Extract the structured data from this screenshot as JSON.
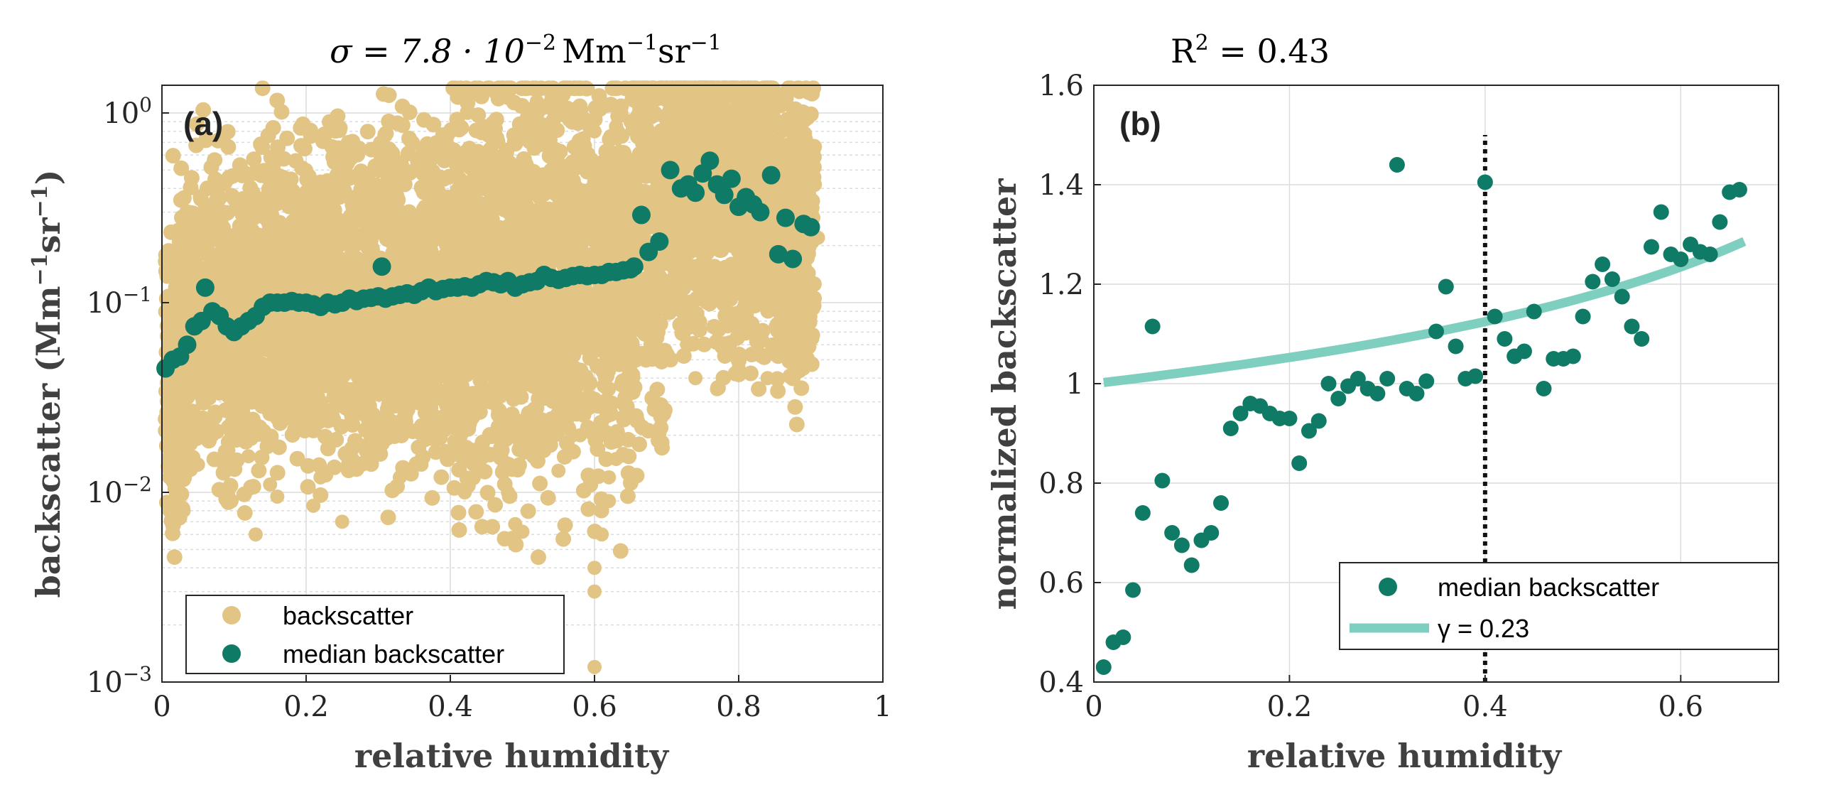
{
  "chart_data": [
    {
      "type": "scatter",
      "panel_label": "(a)",
      "title": {
        "main": "σ = 7.8 · 10",
        "exp": "−2",
        "unit_a": "Mm",
        "unit_a_exp": "−1",
        "unit_b": "sr",
        "unit_b_exp": "−1"
      },
      "xlabel": "relative humidity",
      "ylabel": {
        "main": "backscatter (Mm",
        "exp1": "−1",
        "mid": "sr",
        "exp2": "−1",
        "end": ")"
      },
      "xlim": [
        0,
        1
      ],
      "ylim": [
        0.001,
        1.4
      ],
      "yscale": "log",
      "grid": true,
      "xticks": [
        0,
        0.2,
        0.4,
        0.6,
        0.8,
        1
      ],
      "xtick_labels": [
        "0",
        "0.2",
        "0.4",
        "0.6",
        "0.8",
        "1"
      ],
      "yticks": [
        {
          "base": "10",
          "exp": "−3",
          "value": 0.001
        },
        {
          "base": "10",
          "exp": "−2",
          "value": 0.01
        },
        {
          "base": "10",
          "exp": "−1",
          "value": 0.1
        },
        {
          "base": "10",
          "exp": "0",
          "value": 1
        }
      ],
      "legend": {
        "position": "bottom-left",
        "entries": [
          "backscatter",
          "median backscatter"
        ]
      },
      "colors": {
        "backscatter": "#e2c585",
        "median": "#0f7a65"
      },
      "backscatter_outliers": [
        [
          0.01,
          0.012
        ],
        [
          0.02,
          0.01
        ],
        [
          0.03,
          0.008
        ],
        [
          0.04,
          0.018
        ],
        [
          0.05,
          0.014
        ],
        [
          0.07,
          0.02
        ],
        [
          0.09,
          0.016
        ],
        [
          0.11,
          0.02
        ],
        [
          0.12,
          0.0155
        ],
        [
          0.13,
          0.006
        ],
        [
          0.15,
          0.011
        ],
        [
          0.16,
          0.0095
        ],
        [
          0.21,
          0.0085
        ],
        [
          0.22,
          0.012
        ],
        [
          0.25,
          0.007
        ],
        [
          0.27,
          0.014
        ],
        [
          0.3,
          0.019
        ],
        [
          0.33,
          0.012
        ],
        [
          0.36,
          0.014
        ],
        [
          0.4,
          0.022
        ],
        [
          0.42,
          0.01
        ],
        [
          0.45,
          0.016
        ],
        [
          0.48,
          0.01
        ],
        [
          0.49,
          0.0068
        ],
        [
          0.5,
          0.0062
        ],
        [
          0.52,
          0.016
        ],
        [
          0.55,
          0.013
        ],
        [
          0.57,
          0.02
        ],
        [
          0.58,
          0.02
        ],
        [
          0.6,
          0.0012
        ],
        [
          0.6,
          0.003
        ],
        [
          0.6,
          0.004
        ],
        [
          0.61,
          0.006
        ],
        [
          0.62,
          0.009
        ],
        [
          0.62,
          0.012
        ],
        [
          0.63,
          0.015
        ],
        [
          0.64,
          0.025
        ],
        [
          0.68,
          0.05
        ],
        [
          0.74,
          0.04
        ],
        [
          0.77,
          0.035
        ],
        [
          0.8,
          0.045
        ],
        [
          0.84,
          0.04
        ],
        [
          0.87,
          0.055
        ],
        [
          0.89,
          0.045
        ],
        [
          0.04,
          0.3
        ],
        [
          0.05,
          0.25
        ],
        [
          0.1,
          0.35
        ],
        [
          0.15,
          0.4
        ],
        [
          0.2,
          0.5
        ],
        [
          0.26,
          0.45
        ],
        [
          0.32,
          0.6
        ],
        [
          0.38,
          0.7
        ],
        [
          0.44,
          0.8
        ],
        [
          0.48,
          1.2
        ],
        [
          0.5,
          1.1
        ],
        [
          0.52,
          1.15
        ],
        [
          0.54,
          1.05
        ],
        [
          0.55,
          0.6
        ],
        [
          0.58,
          0.9
        ],
        [
          0.6,
          0.8
        ],
        [
          0.63,
          0.85
        ],
        [
          0.66,
          0.9
        ],
        [
          0.68,
          1.0
        ],
        [
          0.72,
          1.2
        ],
        [
          0.74,
          1.25
        ],
        [
          0.76,
          1.3
        ],
        [
          0.78,
          1.2
        ],
        [
          0.8,
          1.1
        ],
        [
          0.82,
          1.15
        ],
        [
          0.84,
          1.0
        ],
        [
          0.86,
          1.25
        ],
        [
          0.88,
          0.5
        ],
        [
          0.9,
          0.25
        ],
        [
          0.91,
          0.22
        ]
      ],
      "median_backscatter": [
        [
          0.005,
          0.045
        ],
        [
          0.015,
          0.05
        ],
        [
          0.025,
          0.052
        ],
        [
          0.035,
          0.06
        ],
        [
          0.045,
          0.075
        ],
        [
          0.055,
          0.08
        ],
        [
          0.06,
          0.12
        ],
        [
          0.07,
          0.09
        ],
        [
          0.08,
          0.085
        ],
        [
          0.09,
          0.075
        ],
        [
          0.1,
          0.07
        ],
        [
          0.11,
          0.075
        ],
        [
          0.12,
          0.08
        ],
        [
          0.13,
          0.085
        ],
        [
          0.14,
          0.095
        ],
        [
          0.15,
          0.1
        ],
        [
          0.16,
          0.1
        ],
        [
          0.17,
          0.1
        ],
        [
          0.18,
          0.102
        ],
        [
          0.19,
          0.1
        ],
        [
          0.2,
          0.1
        ],
        [
          0.21,
          0.098
        ],
        [
          0.22,
          0.095
        ],
        [
          0.23,
          0.1
        ],
        [
          0.24,
          0.098
        ],
        [
          0.25,
          0.1
        ],
        [
          0.26,
          0.105
        ],
        [
          0.27,
          0.102
        ],
        [
          0.28,
          0.105
        ],
        [
          0.29,
          0.106
        ],
        [
          0.3,
          0.108
        ],
        [
          0.305,
          0.155
        ],
        [
          0.31,
          0.105
        ],
        [
          0.32,
          0.108
        ],
        [
          0.33,
          0.11
        ],
        [
          0.34,
          0.112
        ],
        [
          0.35,
          0.11
        ],
        [
          0.36,
          0.115
        ],
        [
          0.37,
          0.12
        ],
        [
          0.38,
          0.115
        ],
        [
          0.39,
          0.118
        ],
        [
          0.4,
          0.12
        ],
        [
          0.41,
          0.12
        ],
        [
          0.42,
          0.122
        ],
        [
          0.43,
          0.12
        ],
        [
          0.44,
          0.125
        ],
        [
          0.45,
          0.13
        ],
        [
          0.46,
          0.128
        ],
        [
          0.47,
          0.125
        ],
        [
          0.48,
          0.13
        ],
        [
          0.49,
          0.12
        ],
        [
          0.5,
          0.125
        ],
        [
          0.51,
          0.128
        ],
        [
          0.52,
          0.13
        ],
        [
          0.53,
          0.14
        ],
        [
          0.54,
          0.135
        ],
        [
          0.55,
          0.132
        ],
        [
          0.56,
          0.135
        ],
        [
          0.57,
          0.138
        ],
        [
          0.58,
          0.14
        ],
        [
          0.59,
          0.138
        ],
        [
          0.6,
          0.14
        ],
        [
          0.61,
          0.14
        ],
        [
          0.62,
          0.145
        ],
        [
          0.63,
          0.145
        ],
        [
          0.64,
          0.148
        ],
        [
          0.65,
          0.15
        ],
        [
          0.655,
          0.155
        ],
        [
          0.665,
          0.29
        ],
        [
          0.675,
          0.185
        ],
        [
          0.69,
          0.21
        ],
        [
          0.705,
          0.5
        ],
        [
          0.72,
          0.4
        ],
        [
          0.73,
          0.42
        ],
        [
          0.74,
          0.38
        ],
        [
          0.75,
          0.48
        ],
        [
          0.76,
          0.56
        ],
        [
          0.77,
          0.42
        ],
        [
          0.78,
          0.37
        ],
        [
          0.79,
          0.45
        ],
        [
          0.8,
          0.32
        ],
        [
          0.81,
          0.36
        ],
        [
          0.82,
          0.33
        ],
        [
          0.83,
          0.3
        ],
        [
          0.845,
          0.47
        ],
        [
          0.855,
          0.18
        ],
        [
          0.865,
          0.28
        ],
        [
          0.875,
          0.17
        ],
        [
          0.89,
          0.26
        ],
        [
          0.9,
          0.25
        ]
      ]
    },
    {
      "type": "scatter",
      "panel_label": "(b)",
      "title": {
        "main": "R",
        "exp": "2",
        "rest": " = 0.43"
      },
      "xlabel": "relative humidity",
      "ylabel": "normalized backscatter",
      "xlim": [
        0,
        0.7
      ],
      "ylim": [
        0.4,
        1.6
      ],
      "grid": true,
      "xticks": [
        0,
        0.2,
        0.4,
        0.6
      ],
      "xtick_labels": [
        "0",
        "0.2",
        "0.4",
        "0.6"
      ],
      "yticks": [
        0.4,
        0.6,
        0.8,
        1,
        1.2,
        1.4,
        1.6
      ],
      "ytick_labels": [
        "0.4",
        "0.6",
        "0.8",
        "1",
        "1.2",
        "1.4",
        "1.6"
      ],
      "vline": {
        "x": 0.4,
        "y_from": 0.4,
        "y_to": 1.5,
        "style": "dotted"
      },
      "legend": {
        "position": "bottom-right",
        "entries": [
          "median backscatter",
          "γ = 0.23"
        ]
      },
      "fit": {
        "gamma": 0.23,
        "x_from": 0.01,
        "x_to": 0.665
      },
      "colors": {
        "median": "#0f7a65",
        "fit": "#7fcfc0"
      },
      "median_backscatter": [
        [
          0.01,
          0.43
        ],
        [
          0.02,
          0.48
        ],
        [
          0.03,
          0.49
        ],
        [
          0.04,
          0.585
        ],
        [
          0.05,
          0.74
        ],
        [
          0.06,
          1.115
        ],
        [
          0.07,
          0.805
        ],
        [
          0.08,
          0.7
        ],
        [
          0.09,
          0.675
        ],
        [
          0.1,
          0.635
        ],
        [
          0.11,
          0.685
        ],
        [
          0.12,
          0.7
        ],
        [
          0.13,
          0.76
        ],
        [
          0.14,
          0.91
        ],
        [
          0.15,
          0.94
        ],
        [
          0.16,
          0.96
        ],
        [
          0.17,
          0.955
        ],
        [
          0.18,
          0.94
        ],
        [
          0.19,
          0.93
        ],
        [
          0.2,
          0.93
        ],
        [
          0.21,
          0.84
        ],
        [
          0.22,
          0.905
        ],
        [
          0.23,
          0.925
        ],
        [
          0.24,
          1.0
        ],
        [
          0.25,
          0.97
        ],
        [
          0.26,
          0.995
        ],
        [
          0.27,
          1.01
        ],
        [
          0.28,
          0.99
        ],
        [
          0.29,
          0.98
        ],
        [
          0.3,
          1.01
        ],
        [
          0.31,
          1.44
        ],
        [
          0.32,
          0.99
        ],
        [
          0.33,
          0.98
        ],
        [
          0.34,
          1.005
        ],
        [
          0.35,
          1.105
        ],
        [
          0.36,
          1.195
        ],
        [
          0.37,
          1.075
        ],
        [
          0.38,
          1.01
        ],
        [
          0.39,
          1.015
        ],
        [
          0.4,
          1.405
        ],
        [
          0.41,
          1.135
        ],
        [
          0.42,
          1.09
        ],
        [
          0.43,
          1.055
        ],
        [
          0.44,
          1.065
        ],
        [
          0.45,
          1.145
        ],
        [
          0.46,
          0.99
        ],
        [
          0.47,
          1.05
        ],
        [
          0.48,
          1.05
        ],
        [
          0.49,
          1.055
        ],
        [
          0.5,
          1.135
        ],
        [
          0.51,
          1.205
        ],
        [
          0.52,
          1.24
        ],
        [
          0.53,
          1.21
        ],
        [
          0.54,
          1.175
        ],
        [
          0.55,
          1.115
        ],
        [
          0.56,
          1.09
        ],
        [
          0.57,
          1.275
        ],
        [
          0.58,
          1.345
        ],
        [
          0.59,
          1.26
        ],
        [
          0.6,
          1.25
        ],
        [
          0.61,
          1.28
        ],
        [
          0.62,
          1.265
        ],
        [
          0.63,
          1.26
        ],
        [
          0.64,
          1.325
        ],
        [
          0.65,
          1.385
        ],
        [
          0.66,
          1.39
        ]
      ]
    }
  ]
}
